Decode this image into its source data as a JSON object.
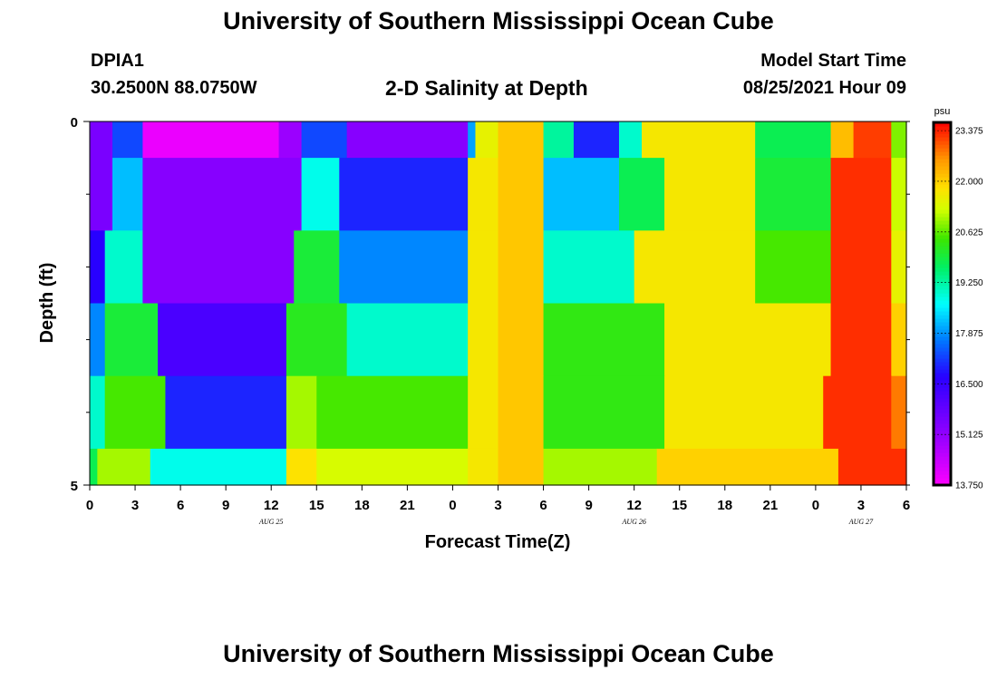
{
  "header": {
    "title": "University of Southern Mississippi Ocean Cube",
    "station": "DPIA1",
    "coords": "30.2500N  88.0750W",
    "subtitle": "2-D Salinity at Depth",
    "model_start_label": "Model Start Time",
    "model_start_value": "08/25/2021 Hour 09"
  },
  "footer": {
    "title": "University of Southern Mississippi Ocean Cube"
  },
  "chart_data": {
    "type": "heatmap",
    "ylabel": "Depth (ft)",
    "xlabel": "Forecast Time(Z)",
    "colorbar_unit": "psu",
    "x_tick_labels": [
      "0",
      "3",
      "6",
      "9",
      "12",
      "15",
      "18",
      "21",
      "0",
      "3",
      "6",
      "9",
      "12",
      "15",
      "18",
      "21",
      "0",
      "3",
      "6"
    ],
    "date_labels": [
      {
        "text": "AUG 25",
        "tick_index": 4
      },
      {
        "text": "AUG 26",
        "tick_index": 12
      },
      {
        "text": "AUG 27",
        "tick_index": 17
      }
    ],
    "y_tick_labels": [
      "0",
      "5"
    ],
    "ylim": [
      0,
      5
    ],
    "y_inverted": true,
    "x_hours": [
      0,
      54
    ],
    "colorbar_ticks": [
      23.375,
      22.0,
      20.625,
      19.25,
      17.875,
      16.5,
      15.125,
      13.75
    ],
    "colorbar_tick_labels": [
      "23.375",
      "22.000",
      "20.625",
      "19.250",
      "17.875",
      "16.500",
      "15.125",
      "13.750"
    ],
    "value_range": [
      13.75,
      23.6
    ],
    "grid": false,
    "depth_bands": [
      {
        "depth": [
          0,
          0.5
        ],
        "segments": [
          {
            "from": 0,
            "to": 1.5,
            "value": 15.5
          },
          {
            "from": 1.5,
            "to": 3.5,
            "value": 17.3
          },
          {
            "from": 3.5,
            "to": 12.5,
            "value": 14.0
          },
          {
            "from": 12.5,
            "to": 14,
            "value": 15.0
          },
          {
            "from": 14,
            "to": 17,
            "value": 17.3
          },
          {
            "from": 17,
            "to": 25,
            "value": 15.3
          },
          {
            "from": 25,
            "to": 25.5,
            "value": 18.0
          },
          {
            "from": 25.5,
            "to": 27,
            "value": 21.5
          },
          {
            "from": 27,
            "to": 30,
            "value": 22.1
          },
          {
            "from": 30,
            "to": 32,
            "value": 19.3
          },
          {
            "from": 32,
            "to": 35,
            "value": 17.0
          },
          {
            "from": 35,
            "to": 36.5,
            "value": 19.0
          },
          {
            "from": 36.5,
            "to": 44,
            "value": 21.7
          },
          {
            "from": 44,
            "to": 49,
            "value": 19.8
          },
          {
            "from": 49,
            "to": 50.5,
            "value": 22.2
          },
          {
            "from": 50.5,
            "to": 53,
            "value": 23.2
          },
          {
            "from": 53,
            "to": 54,
            "value": 20.8
          }
        ]
      },
      {
        "depth": [
          0.5,
          1.5
        ],
        "segments": [
          {
            "from": 0,
            "to": 1.5,
            "value": 15.5
          },
          {
            "from": 1.5,
            "to": 3.5,
            "value": 18.2
          },
          {
            "from": 3.5,
            "to": 14,
            "value": 15.3
          },
          {
            "from": 14,
            "to": 16.5,
            "value": 18.8
          },
          {
            "from": 16.5,
            "to": 25,
            "value": 17.0
          },
          {
            "from": 25,
            "to": 27,
            "value": 21.7
          },
          {
            "from": 27,
            "to": 30,
            "value": 22.1
          },
          {
            "from": 30,
            "to": 35,
            "value": 18.2
          },
          {
            "from": 35,
            "to": 38,
            "value": 19.8
          },
          {
            "from": 38,
            "to": 44,
            "value": 21.7
          },
          {
            "from": 44,
            "to": 49,
            "value": 20.0
          },
          {
            "from": 49,
            "to": 53,
            "value": 23.3
          },
          {
            "from": 53,
            "to": 54,
            "value": 21.2
          }
        ]
      },
      {
        "depth": [
          1.5,
          2.5
        ],
        "segments": [
          {
            "from": 0,
            "to": 1,
            "value": 16.7
          },
          {
            "from": 1,
            "to": 3.5,
            "value": 19.0
          },
          {
            "from": 3.5,
            "to": 13.5,
            "value": 15.3
          },
          {
            "from": 13.5,
            "to": 16.5,
            "value": 20.0
          },
          {
            "from": 16.5,
            "to": 25,
            "value": 17.8
          },
          {
            "from": 25,
            "to": 27,
            "value": 21.7
          },
          {
            "from": 27,
            "to": 30,
            "value": 22.1
          },
          {
            "from": 30,
            "to": 36,
            "value": 19.0
          },
          {
            "from": 36,
            "to": 44,
            "value": 21.7
          },
          {
            "from": 44,
            "to": 49,
            "value": 20.5
          },
          {
            "from": 49,
            "to": 53,
            "value": 23.3
          },
          {
            "from": 53,
            "to": 54,
            "value": 21.5
          }
        ]
      },
      {
        "depth": [
          2.5,
          3.5
        ],
        "segments": [
          {
            "from": 0,
            "to": 1,
            "value": 17.8
          },
          {
            "from": 1,
            "to": 4.5,
            "value": 20.0
          },
          {
            "from": 4.5,
            "to": 13,
            "value": 16.2
          },
          {
            "from": 13,
            "to": 17,
            "value": 20.2
          },
          {
            "from": 17,
            "to": 25,
            "value": 19.0
          },
          {
            "from": 25,
            "to": 27,
            "value": 21.7
          },
          {
            "from": 27,
            "to": 30,
            "value": 22.1
          },
          {
            "from": 30,
            "to": 38,
            "value": 20.3
          },
          {
            "from": 38,
            "to": 49,
            "value": 21.7
          },
          {
            "from": 49,
            "to": 53,
            "value": 23.3
          },
          {
            "from": 53,
            "to": 54,
            "value": 22.0
          }
        ]
      },
      {
        "depth": [
          3.5,
          4.5
        ],
        "segments": [
          {
            "from": 0,
            "to": 1,
            "value": 19.0
          },
          {
            "from": 1,
            "to": 5,
            "value": 20.5
          },
          {
            "from": 5,
            "to": 13,
            "value": 17.0
          },
          {
            "from": 13,
            "to": 15,
            "value": 21.0
          },
          {
            "from": 15,
            "to": 25,
            "value": 20.5
          },
          {
            "from": 25,
            "to": 27,
            "value": 21.7
          },
          {
            "from": 27,
            "to": 30,
            "value": 22.1
          },
          {
            "from": 30,
            "to": 38,
            "value": 20.3
          },
          {
            "from": 38,
            "to": 48.5,
            "value": 21.7
          },
          {
            "from": 48.5,
            "to": 53,
            "value": 23.3
          },
          {
            "from": 53,
            "to": 54,
            "value": 22.8
          }
        ]
      },
      {
        "depth": [
          4.5,
          5
        ],
        "segments": [
          {
            "from": 0,
            "to": 0.5,
            "value": 19.8
          },
          {
            "from": 0.5,
            "to": 4,
            "value": 21.0
          },
          {
            "from": 4,
            "to": 13,
            "value": 18.8
          },
          {
            "from": 13,
            "to": 15,
            "value": 21.8
          },
          {
            "from": 15,
            "to": 25,
            "value": 21.3
          },
          {
            "from": 25,
            "to": 27,
            "value": 21.7
          },
          {
            "from": 27,
            "to": 30,
            "value": 22.1
          },
          {
            "from": 30,
            "to": 37.5,
            "value": 21.0
          },
          {
            "from": 37.5,
            "to": 49.5,
            "value": 22.0
          },
          {
            "from": 49.5,
            "to": 54,
            "value": 23.3
          }
        ]
      }
    ]
  }
}
